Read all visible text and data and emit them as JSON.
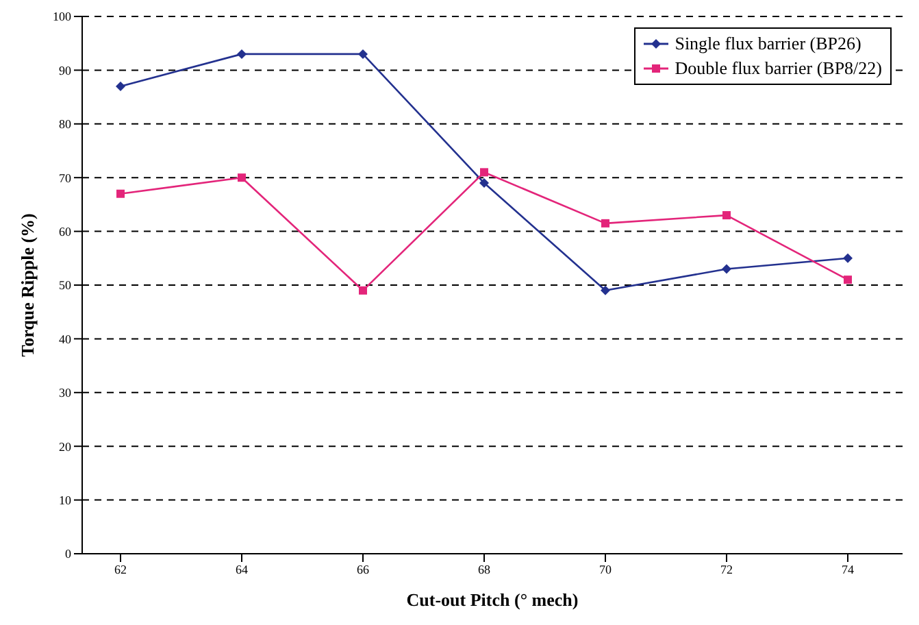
{
  "chart_data": {
    "type": "line",
    "xlabel": "Cut-out Pitch (° mech)",
    "ylabel": "Torque Ripple (%)",
    "categories": [
      "62",
      "64",
      "66",
      "68",
      "70",
      "72",
      "74"
    ],
    "series": [
      {
        "name": "Single flux barrier (BP26)",
        "color": "#23318f",
        "values": [
          87,
          93,
          93,
          69,
          49,
          53,
          55
        ],
        "marker": "diamond"
      },
      {
        "name": "Double flux barrier (BP8/22)",
        "color": "#e3257a",
        "values": [
          67,
          70,
          49,
          71,
          61.5,
          63,
          51
        ],
        "marker": "square"
      }
    ],
    "ylim": [
      0,
      100
    ],
    "yticks": [
      0,
      10,
      20,
      30,
      40,
      50,
      60,
      70,
      80,
      90,
      100
    ],
    "grid": "y",
    "legend": "top right",
    "line_style": "solid"
  }
}
